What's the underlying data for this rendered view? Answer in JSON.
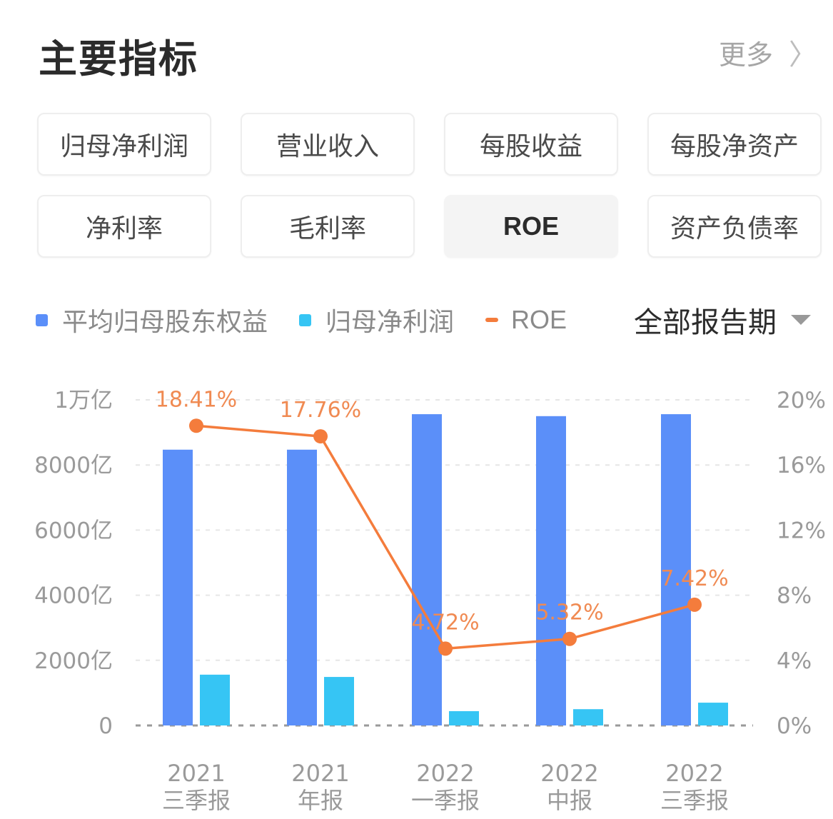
{
  "header": {
    "title": "主要指标",
    "more_label": "更多",
    "more_icon": "chevron-right-icon"
  },
  "tabs": [
    {
      "label": "归母净利润",
      "active": false
    },
    {
      "label": "营业收入",
      "active": false
    },
    {
      "label": "每股收益",
      "active": false
    },
    {
      "label": "每股净资产",
      "active": false
    },
    {
      "label": "净利率",
      "active": false
    },
    {
      "label": "毛利率",
      "active": false
    },
    {
      "label": "ROE",
      "active": true
    },
    {
      "label": "资产负债率",
      "active": false
    }
  ],
  "legend": [
    {
      "label": "平均归母股东权益",
      "color": "#5b8ff9",
      "shape": "square"
    },
    {
      "label": "归母净利润",
      "color": "#36c5f4",
      "shape": "square"
    },
    {
      "label": "ROE",
      "color": "#f47c3c",
      "shape": "line"
    }
  ],
  "period_selector": {
    "label": "全部报告期",
    "icon": "caret-down-icon"
  },
  "colors": {
    "equity_bar": "#5b8ff9",
    "profit_bar": "#36c5f4",
    "roe_line": "#f47c3c",
    "roe_label": "#f08a52",
    "axis_text": "#9a9a9a",
    "grid": "#e6e6e6"
  },
  "chart_data": {
    "type": "bar",
    "title": "",
    "categories": [
      "2021 三季报",
      "2021 年报",
      "2022 一季报",
      "2022 中报",
      "2022 三季报"
    ],
    "category_lines": [
      [
        "2021",
        "三季报"
      ],
      [
        "2021",
        "年报"
      ],
      [
        "2022",
        "一季报"
      ],
      [
        "2022",
        "中报"
      ],
      [
        "2022",
        "三季报"
      ]
    ],
    "series": [
      {
        "name": "平均归母股东权益",
        "type": "bar",
        "axis": "left",
        "unit": "亿",
        "values": [
          8470,
          8470,
          9560,
          9500,
          9560
        ]
      },
      {
        "name": "归母净利润",
        "type": "bar",
        "axis": "left",
        "unit": "亿",
        "values": [
          1560,
          1490,
          440,
          500,
          700
        ]
      },
      {
        "name": "ROE",
        "type": "line",
        "axis": "right",
        "unit": "%",
        "values": [
          18.41,
          17.76,
          4.72,
          5.32,
          7.42
        ],
        "labels": [
          "18.41%",
          "17.76%",
          "4.72%",
          "5.32%",
          "7.42%"
        ]
      }
    ],
    "y_left": {
      "ticks": [
        "0",
        "2000亿",
        "4000亿",
        "6000亿",
        "8000亿",
        "1万亿"
      ],
      "range": [
        0,
        10000
      ],
      "unit": "亿"
    },
    "y_right": {
      "ticks": [
        "0%",
        "4%",
        "8%",
        "12%",
        "16%",
        "20%"
      ],
      "range": [
        0,
        20
      ]
    },
    "xlabel": "",
    "ylabel": "",
    "grid": true,
    "legend_position": "top"
  }
}
